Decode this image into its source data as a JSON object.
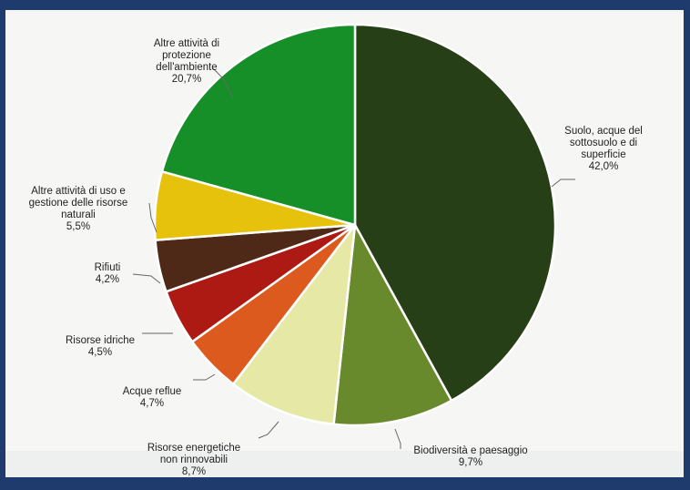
{
  "chart_data": {
    "type": "pie",
    "title": "",
    "slices": [
      {
        "label": "Suolo, acque del sottosuolo e di superficie",
        "value": 42.0,
        "display": "42,0%",
        "color": "#263f17"
      },
      {
        "label": "Biodiversità e paesaggio",
        "value": 9.7,
        "display": "9,7%",
        "color": "#698a2c"
      },
      {
        "label": "Risorse energetiche non rinnovabili",
        "value": 8.7,
        "display": "8,7%",
        "color": "#e6e9a5"
      },
      {
        "label": "Acque reflue",
        "value": 4.7,
        "display": "4,7%",
        "color": "#dd5a1f"
      },
      {
        "label": "Risorse idriche",
        "value": 4.5,
        "display": "4,5%",
        "color": "#ad1a14"
      },
      {
        "label": "Rifiuti",
        "value": 4.2,
        "display": "4,2%",
        "color": "#4f2918"
      },
      {
        "label": "Altre attività di uso e gestione delle risorse naturali",
        "value": 5.5,
        "display": "5,5%",
        "color": "#e6c20c"
      },
      {
        "label": "Altre attività di protezione dell'ambiente",
        "value": 20.7,
        "display": "20,7%",
        "color": "#168f28"
      }
    ]
  },
  "labels": [
    {
      "text": "Suolo, acque del\nsottosuolo e di\nsuperficie",
      "pct": "42,0%"
    },
    {
      "text": "Biodiversità e paesaggio",
      "pct": "9,7%"
    },
    {
      "text": "Risorse energetiche\nnon rinnovabili",
      "pct": "8,7%"
    },
    {
      "text": "Acque reflue",
      "pct": "4,7%"
    },
    {
      "text": "Risorse idriche",
      "pct": "4,5%"
    },
    {
      "text": "Rifiuti",
      "pct": "4,2%"
    },
    {
      "text": "Altre attività di uso e\ngestione delle risorse\nnaturali",
      "pct": "5,5%"
    },
    {
      "text": "Altre attività di\nprotezione\ndell'ambiente",
      "pct": "20,7%"
    }
  ]
}
